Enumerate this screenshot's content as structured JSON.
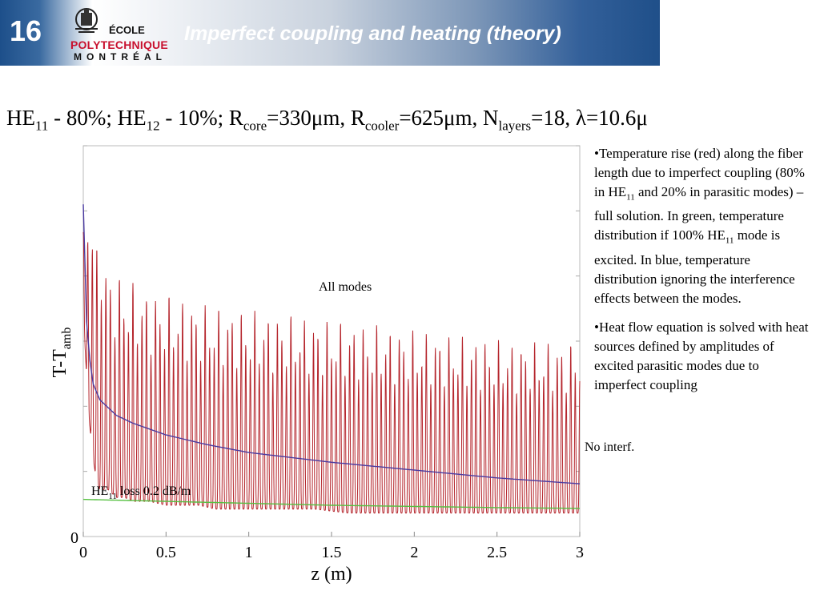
{
  "header": {
    "slide_number": "16",
    "title": "Imperfect coupling and heating (theory)",
    "logo": {
      "line1": "ÉCOLE",
      "line2": "POLYTECHNIQUE",
      "line3": "MONTRÉAL"
    }
  },
  "chart_title": {
    "part1": "HE",
    "sub1": "11",
    "part2": " - 80%; HE",
    "sub2": "12",
    "part3": " - 10%; R",
    "sub3": "core",
    "part4": "=330μm, R",
    "sub4": "cooler",
    "part5": "=625μm, N",
    "sub5": "layers",
    "part6": "=18, λ=10.6μr"
  },
  "bullets": {
    "b1_part1": "•Temperature rise (red) along the fiber length due to imperfect coupling (80% in HE",
    "b1_sub1": "11",
    "b1_part2": " and 20% in parasitic modes) – full solution. In green, temperature distribution if 100% HE",
    "b1_sub2": "11",
    "b1_part3": " mode is excited. In blue, temperature distribution ignoring the interference effects between the modes.",
    "b2": "•Heat flow equation is solved with heat sources defined by amplitudes of excited parasitic modes due to imperfect coupling"
  },
  "colors": {
    "header_blue": "#1f4f89",
    "all_modes": "#b5252c",
    "no_interf": "#4a3aa0",
    "he11": "#55c040",
    "logo_red": "#c8102e"
  },
  "chart_data": {
    "type": "line",
    "xlabel": "z (m)",
    "ylabel_main": "T-T",
    "ylabel_sub": "amb",
    "xlim": [
      0,
      3
    ],
    "ylim": [
      0,
      1
    ],
    "x_ticks": [
      "0",
      "0.5",
      "1",
      "1.5",
      "2",
      "2.5",
      "3"
    ],
    "y_ticks": [
      "0"
    ],
    "annotations": {
      "all_modes": "All modes",
      "no_interf": "No interf.",
      "he11_main": "HE",
      "he11_sub": "11",
      "he11_rest": " loss 0.2 dB/m"
    },
    "series": [
      {
        "key": "all_modes",
        "x": [
          0.0,
          0.03,
          0.06,
          0.08,
          0.1,
          0.15,
          0.2,
          0.25,
          0.3,
          0.4,
          0.5,
          0.6,
          0.7,
          0.8,
          1.0,
          1.2,
          1.4,
          1.6,
          1.8,
          2.0,
          2.2,
          2.4,
          2.6,
          2.8,
          3.0
        ],
        "upper": [
          0.78,
          0.88,
          0.86,
          0.74,
          0.83,
          0.68,
          0.68,
          0.66,
          0.65,
          0.63,
          0.62,
          0.61,
          0.6,
          0.59,
          0.58,
          0.57,
          0.56,
          0.55,
          0.54,
          0.53,
          0.52,
          0.51,
          0.5,
          0.5,
          0.5
        ],
        "lower": [
          0.58,
          0.32,
          0.2,
          0.14,
          0.12,
          0.12,
          0.1,
          0.1,
          0.09,
          0.09,
          0.08,
          0.08,
          0.08,
          0.07,
          0.07,
          0.07,
          0.07,
          0.06,
          0.06,
          0.06,
          0.06,
          0.06,
          0.06,
          0.06,
          0.06
        ],
        "oscillations": 110
      },
      {
        "key": "no_interf",
        "x": [
          0.0,
          0.01,
          0.02,
          0.04,
          0.06,
          0.1,
          0.15,
          0.2,
          0.3,
          0.5,
          0.75,
          1.0,
          1.5,
          2.0,
          2.5,
          3.0
        ],
        "y": [
          0.85,
          0.7,
          0.55,
          0.45,
          0.39,
          0.35,
          0.33,
          0.31,
          0.29,
          0.26,
          0.235,
          0.215,
          0.19,
          0.17,
          0.15,
          0.135
        ]
      },
      {
        "key": "he11",
        "x": [
          0.0,
          0.5,
          1.0,
          1.5,
          2.0,
          2.5,
          3.0
        ],
        "y": [
          0.095,
          0.09,
          0.085,
          0.08,
          0.077,
          0.074,
          0.072
        ]
      }
    ]
  }
}
